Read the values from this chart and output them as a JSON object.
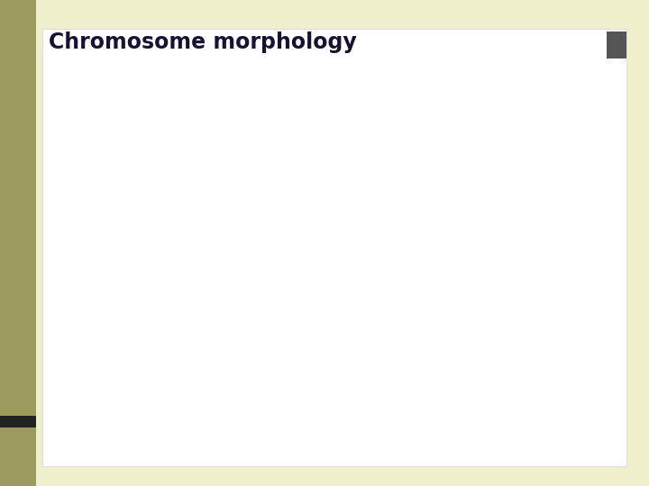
{
  "title": "Chromosome morphology",
  "bg_outer": "#f0efcc",
  "bg_inner": "#ffffff",
  "arm_fill": "#f4a8a8",
  "arm_edge": "#8b3a3a",
  "centromere_fill": "#cc2233",
  "centromere_edge": "#881122",
  "label_color": "#555544",
  "title_color": "#1a1030",
  "annotation_color": "#666655",
  "label_fontstyle": "italic"
}
